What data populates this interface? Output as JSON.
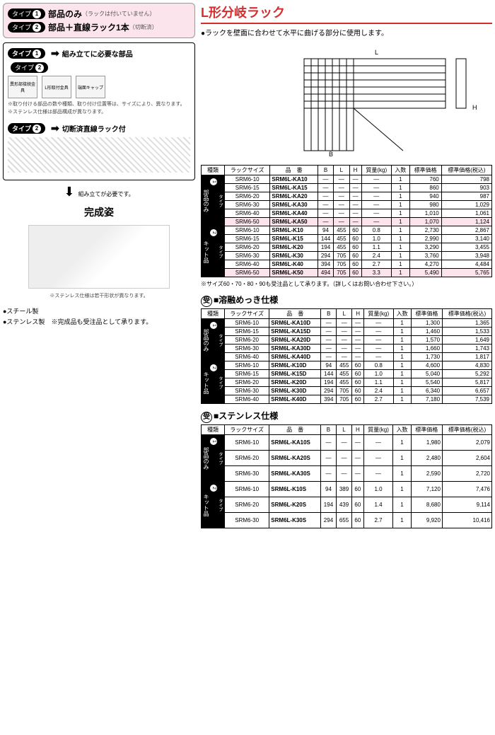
{
  "left": {
    "type1_label": "タイプ",
    "type1_num": "1",
    "type1_text": "部品のみ",
    "type1_sub": "（ラックは付いていません）",
    "type2_num": "2",
    "type2_text": "部品＋直線ラック1本",
    "type2_sub": "（切断済）",
    "asm1_title": "組み立てに必要な部品",
    "part1": "異形部接続金具",
    "part2": "L形取付金具",
    "part3": "端面キャップ",
    "note1": "※取り付ける部品の数や種類、取り付け位置等は、サイズにより、異なります。",
    "note2": "※ステンレス仕様は部品構成が異なります。",
    "asm2_title": "切断済直線ラック付",
    "done_arrow_note": "組み立てが必要です。",
    "completed": "完成姿",
    "final_note": "※ステンレス仕様は若干形状が異なります。",
    "b1": "●スチール製",
    "b2": "●ステンレス製",
    "b3": "※完成品も受注品として承ります。"
  },
  "right": {
    "title": "L形分岐ラック",
    "desc": "●ラックを壁面に合わせて水平に曲げる部分に使用します。",
    "foot1": "※サイズ60・70・80・90も受注品として承ります。（詳しくはお問い合わせ下さい。）",
    "sec2": "■溶融めっき仕様",
    "sec3": "■ステンレス仕様",
    "new": "新",
    "uke": "受",
    "headers": [
      "種類",
      "ラックサイズ",
      "品　番",
      "B",
      "L",
      "H",
      "質量(kg)",
      "入数",
      "標準価格",
      "標準価格(税込)"
    ],
    "t1": {
      "g1_label": "部品のみ",
      "g2_label": "キット品",
      "g1": [
        {
          "sz": "SRM6-10",
          "pn": "SRM6L-KA10",
          "b": "—",
          "l": "—",
          "h": "—",
          "w": "—",
          "q": "1",
          "p": "760",
          "pt": "798"
        },
        {
          "sz": "SRM6-15",
          "pn": "SRM6L-KA15",
          "b": "—",
          "l": "—",
          "h": "—",
          "w": "—",
          "q": "1",
          "p": "860",
          "pt": "903"
        },
        {
          "sz": "SRM6-20",
          "pn": "SRM6L-KA20",
          "b": "—",
          "l": "—",
          "h": "—",
          "w": "—",
          "q": "1",
          "p": "940",
          "pt": "987"
        },
        {
          "sz": "SRM6-30",
          "pn": "SRM6L-KA30",
          "b": "—",
          "l": "—",
          "h": "—",
          "w": "—",
          "q": "1",
          "p": "980",
          "pt": "1,029"
        },
        {
          "sz": "SRM6-40",
          "pn": "SRM6L-KA40",
          "b": "—",
          "l": "—",
          "h": "—",
          "w": "—",
          "q": "1",
          "p": "1,010",
          "pt": "1,061"
        },
        {
          "sz": "SRM6-50",
          "pn": "SRM6L-KA50",
          "b": "—",
          "l": "—",
          "h": "—",
          "w": "—",
          "q": "1",
          "p": "1,070",
          "pt": "1,124",
          "hl": true,
          "new": true
        }
      ],
      "g2": [
        {
          "sz": "SRM6-10",
          "pn": "SRM6L-K10",
          "b": "94",
          "l": "455",
          "h": "60",
          "w": "0.8",
          "q": "1",
          "p": "2,730",
          "pt": "2,867"
        },
        {
          "sz": "SRM6-15",
          "pn": "SRM6L-K15",
          "b": "144",
          "l": "455",
          "h": "60",
          "w": "1.0",
          "q": "1",
          "p": "2,990",
          "pt": "3,140"
        },
        {
          "sz": "SRM6-20",
          "pn": "SRM6L-K20",
          "b": "194",
          "l": "455",
          "h": "60",
          "w": "1.1",
          "q": "1",
          "p": "3,290",
          "pt": "3,455"
        },
        {
          "sz": "SRM6-30",
          "pn": "SRM6L-K30",
          "b": "294",
          "l": "705",
          "h": "60",
          "w": "2.4",
          "q": "1",
          "p": "3,760",
          "pt": "3,948"
        },
        {
          "sz": "SRM6-40",
          "pn": "SRM6L-K40",
          "b": "394",
          "l": "705",
          "h": "60",
          "w": "2.7",
          "q": "1",
          "p": "4,270",
          "pt": "4,484"
        },
        {
          "sz": "SRM6-50",
          "pn": "SRM6L-K50",
          "b": "494",
          "l": "705",
          "h": "60",
          "w": "3.3",
          "q": "1",
          "p": "5,490",
          "pt": "5,765",
          "hl": true,
          "new": true
        }
      ]
    },
    "t2": {
      "g1": [
        {
          "sz": "SRM6-10",
          "pn": "SRM6L-KA10D",
          "b": "—",
          "l": "—",
          "h": "—",
          "w": "—",
          "q": "1",
          "p": "1,300",
          "pt": "1,365"
        },
        {
          "sz": "SRM6-15",
          "pn": "SRM6L-KA15D",
          "b": "—",
          "l": "—",
          "h": "—",
          "w": "—",
          "q": "1",
          "p": "1,460",
          "pt": "1,533"
        },
        {
          "sz": "SRM6-20",
          "pn": "SRM6L-KA20D",
          "b": "—",
          "l": "—",
          "h": "—",
          "w": "—",
          "q": "1",
          "p": "1,570",
          "pt": "1,649"
        },
        {
          "sz": "SRM6-30",
          "pn": "SRM6L-KA30D",
          "b": "—",
          "l": "—",
          "h": "—",
          "w": "—",
          "q": "1",
          "p": "1,660",
          "pt": "1,743"
        },
        {
          "sz": "SRM6-40",
          "pn": "SRM6L-KA40D",
          "b": "—",
          "l": "—",
          "h": "—",
          "w": "—",
          "q": "1",
          "p": "1,730",
          "pt": "1,817"
        }
      ],
      "g2": [
        {
          "sz": "SRM6-10",
          "pn": "SRM6L-K10D",
          "b": "94",
          "l": "455",
          "h": "60",
          "w": "0.8",
          "q": "1",
          "p": "4,600",
          "pt": "4,830"
        },
        {
          "sz": "SRM6-15",
          "pn": "SRM6L-K15D",
          "b": "144",
          "l": "455",
          "h": "60",
          "w": "1.0",
          "q": "1",
          "p": "5,040",
          "pt": "5,292"
        },
        {
          "sz": "SRM6-20",
          "pn": "SRM6L-K20D",
          "b": "194",
          "l": "455",
          "h": "60",
          "w": "1.1",
          "q": "1",
          "p": "5,540",
          "pt": "5,817"
        },
        {
          "sz": "SRM6-30",
          "pn": "SRM6L-K30D",
          "b": "294",
          "l": "705",
          "h": "60",
          "w": "2.4",
          "q": "1",
          "p": "6,340",
          "pt": "6,657"
        },
        {
          "sz": "SRM6-40",
          "pn": "SRM6L-K40D",
          "b": "394",
          "l": "705",
          "h": "60",
          "w": "2.7",
          "q": "1",
          "p": "7,180",
          "pt": "7,539"
        }
      ]
    },
    "t3": {
      "g1": [
        {
          "sz": "SRM6-10",
          "pn": "SRM6L-KA10S",
          "b": "—",
          "l": "—",
          "h": "—",
          "w": "—",
          "q": "1",
          "p": "1,980",
          "pt": "2,079"
        },
        {
          "sz": "SRM6-20",
          "pn": "SRM6L-KA20S",
          "b": "—",
          "l": "—",
          "h": "—",
          "w": "—",
          "q": "1",
          "p": "2,480",
          "pt": "2,604"
        },
        {
          "sz": "SRM6-30",
          "pn": "SRM6L-KA30S",
          "b": "—",
          "l": "—",
          "h": "—",
          "w": "—",
          "q": "1",
          "p": "2,590",
          "pt": "2,720"
        }
      ],
      "g2": [
        {
          "sz": "SRM6-10",
          "pn": "SRM6L-K10S",
          "b": "94",
          "l": "389",
          "h": "60",
          "w": "1.0",
          "q": "1",
          "p": "7,120",
          "pt": "7,476"
        },
        {
          "sz": "SRM6-20",
          "pn": "SRM6L-K20S",
          "b": "194",
          "l": "439",
          "h": "60",
          "w": "1.4",
          "q": "1",
          "p": "8,680",
          "pt": "9,114"
        },
        {
          "sz": "SRM6-30",
          "pn": "SRM6L-K30S",
          "b": "294",
          "l": "655",
          "h": "60",
          "w": "2.7",
          "q": "1",
          "p": "9,920",
          "pt": "10,416"
        }
      ]
    }
  }
}
